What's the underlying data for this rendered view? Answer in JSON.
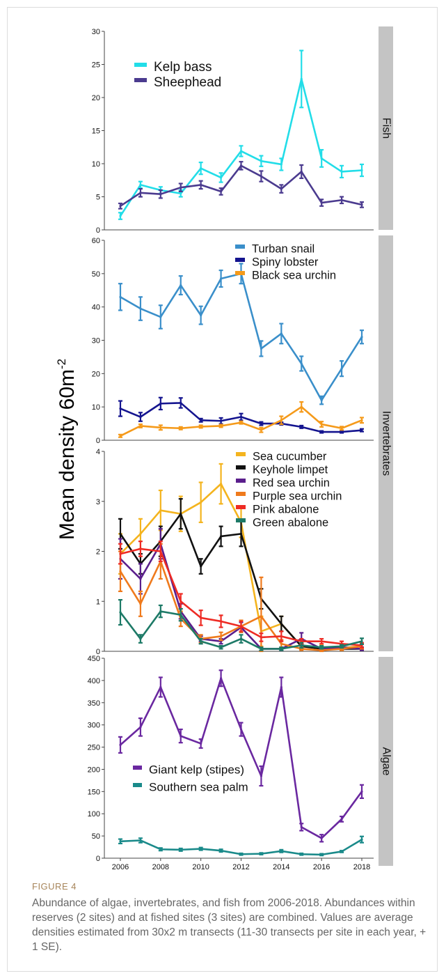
{
  "ylabel": "Mean density 60m",
  "ylabel_sup": "-2",
  "caption": {
    "label": "FIGURE 4",
    "text": "Abundance of algae, invertebrates, and fish from 2006-2018. Abundances within reserves (2 sites) and at fished sites (3 sites) are combined. Values are average densities estimated from 30x2 m transects (11-30 transects per site in each year, + 1 SE)."
  },
  "chart_data": [
    {
      "type": "line",
      "facet": "Fish",
      "x": [
        2006,
        2007,
        2008,
        2009,
        2010,
        2011,
        2012,
        2013,
        2014,
        2015,
        2016,
        2017,
        2018
      ],
      "ylim": [
        0,
        30
      ],
      "yticks": [
        0,
        5,
        10,
        15,
        20,
        25,
        30
      ],
      "legend_position": "top-left",
      "series": [
        {
          "name": "Kelp bass",
          "color": "#22dde8",
          "values": [
            2.1,
            6.8,
            6.0,
            5.5,
            9.3,
            7.9,
            11.9,
            10.4,
            9.9,
            22.8,
            10.8,
            8.8,
            9.0
          ],
          "errors": [
            0.5,
            0.5,
            0.5,
            0.5,
            0.9,
            0.7,
            0.8,
            0.8,
            0.9,
            4.3,
            1.3,
            0.9,
            0.9
          ]
        },
        {
          "name": "Sheephead",
          "color": "#4b3b8f",
          "values": [
            3.6,
            5.6,
            5.4,
            6.4,
            6.8,
            5.8,
            9.7,
            8.1,
            6.2,
            8.8,
            4.1,
            4.5,
            3.8
          ],
          "errors": [
            0.4,
            0.6,
            0.6,
            0.6,
            0.6,
            0.5,
            0.6,
            0.8,
            0.6,
            1.0,
            0.5,
            0.5,
            0.4
          ]
        }
      ]
    },
    {
      "type": "line",
      "facet": "Invertebrates",
      "x": [
        2006,
        2007,
        2008,
        2009,
        2010,
        2011,
        2012,
        2013,
        2014,
        2015,
        2016,
        2017,
        2018
      ],
      "ylim": [
        0,
        60
      ],
      "yticks": [
        0,
        10,
        20,
        30,
        40,
        50,
        60
      ],
      "legend_position": "top-right",
      "series": [
        {
          "name": "Turban snail",
          "color": "#3a8fca",
          "values": [
            43,
            39.5,
            37,
            46.5,
            37.5,
            48.5,
            50,
            27.5,
            32,
            23,
            12,
            21.5,
            31
          ],
          "errors": [
            4,
            3.5,
            3.5,
            2.8,
            2.7,
            2.5,
            3,
            2.3,
            3,
            2.2,
            1.2,
            2.3,
            2
          ]
        },
        {
          "name": "Spiny lobster",
          "color": "#14148f",
          "values": [
            9.5,
            7,
            11,
            11.2,
            6,
            5.8,
            7,
            5,
            5,
            4,
            2.5,
            2.5,
            3
          ],
          "errors": [
            2.3,
            1.3,
            1.8,
            1.5,
            0.5,
            0.9,
            1,
            0.5,
            0.4,
            0.4,
            0.3,
            0.3,
            0.4
          ]
        },
        {
          "name": "Black sea urchin",
          "color": "#f59a1a",
          "values": [
            1.3,
            4.3,
            3.8,
            3.6,
            4.1,
            4.3,
            5.3,
            3.1,
            6,
            10,
            4.8,
            3.6,
            6
          ],
          "errors": [
            0.4,
            0.5,
            0.7,
            0.4,
            0.4,
            0.4,
            0.4,
            0.7,
            1.2,
            1.5,
            0.8,
            0.5,
            0.8
          ]
        }
      ]
    },
    {
      "type": "line",
      "facet": "Invertebrates",
      "x": [
        2006,
        2007,
        2008,
        2009,
        2010,
        2011,
        2012,
        2013,
        2014,
        2015,
        2016,
        2017,
        2018
      ],
      "ylim": [
        0,
        4
      ],
      "yticks": [
        0,
        1,
        2,
        3,
        4
      ],
      "legend_position": "top-right",
      "series": [
        {
          "name": "Sea cucumber",
          "color": "#f4b41e",
          "values": [
            1.95,
            2.35,
            2.82,
            2.75,
            2.98,
            3.35,
            2.58,
            0.4,
            0.55,
            0.1,
            0.07,
            0.07,
            0.1
          ],
          "errors": [
            0.4,
            0.3,
            0.4,
            0.35,
            0.4,
            0.4,
            0.3,
            0.3,
            0.15,
            0.05,
            0.05,
            0.05,
            0.05
          ]
        },
        {
          "name": "Keyhole limpet",
          "color": "#111111",
          "values": [
            2.35,
            1.75,
            2.2,
            2.75,
            1.7,
            2.3,
            2.35,
            1.05,
            0.55,
            0.1,
            0.05,
            0.05,
            0.05
          ],
          "errors": [
            0.3,
            0.2,
            0.3,
            0.3,
            0.15,
            0.2,
            0.25,
            0.2,
            0.15,
            0.05,
            0.03,
            0.03,
            0.03
          ]
        },
        {
          "name": "Red sea urchin",
          "color": "#5a1e8c",
          "values": [
            1.85,
            1.45,
            2.15,
            0.8,
            0.25,
            0.2,
            0.48,
            0.05,
            0.05,
            0.25,
            0.05,
            0.08,
            0.05
          ],
          "errors": [
            0.4,
            0.3,
            0.3,
            0.15,
            0.05,
            0.05,
            0.1,
            0.03,
            0.03,
            0.12,
            0.03,
            0.03,
            0.03
          ]
        },
        {
          "name": "Purple sea urchin",
          "color": "#ef7a1c",
          "values": [
            1.6,
            0.95,
            1.8,
            0.65,
            0.25,
            0.3,
            0.5,
            0.7,
            0.15,
            0.05,
            0.02,
            0.05,
            0.1
          ],
          "errors": [
            0.4,
            0.25,
            0.35,
            0.15,
            0.08,
            0.08,
            0.12,
            0.78,
            0.08,
            0.03,
            0.02,
            0.03,
            0.05
          ]
        },
        {
          "name": "Pink abalone",
          "color": "#ee2b24",
          "values": [
            1.95,
            2.05,
            2.0,
            1.0,
            0.67,
            0.6,
            0.5,
            0.28,
            0.3,
            0.2,
            0.2,
            0.15,
            0.12
          ],
          "errors": [
            0.2,
            0.15,
            0.2,
            0.15,
            0.15,
            0.12,
            0.1,
            0.08,
            0.1,
            0.05,
            0.05,
            0.05,
            0.05
          ]
        },
        {
          "name": "Green abalone",
          "color": "#1d7a67",
          "values": [
            0.78,
            0.25,
            0.8,
            0.73,
            0.2,
            0.08,
            0.25,
            0.05,
            0.05,
            0.12,
            0.08,
            0.1,
            0.2
          ],
          "errors": [
            0.25,
            0.08,
            0.12,
            0.12,
            0.05,
            0.03,
            0.08,
            0.03,
            0.03,
            0.05,
            0.03,
            0.03,
            0.06
          ]
        }
      ]
    },
    {
      "type": "line",
      "facet": "Algae",
      "x": [
        2006,
        2007,
        2008,
        2009,
        2010,
        2011,
        2012,
        2013,
        2014,
        2015,
        2016,
        2017,
        2018
      ],
      "ylim": [
        0,
        450
      ],
      "yticks": [
        0,
        50,
        100,
        150,
        200,
        250,
        300,
        350,
        400,
        450
      ],
      "xticks": [
        "2006",
        "2008",
        "2010",
        "2012",
        "2014",
        "2016",
        "2018"
      ],
      "legend_position": "bottom-left",
      "series": [
        {
          "name": "Giant kelp (stipes)",
          "color": "#6a28a0",
          "values": [
            255,
            295,
            385,
            275,
            258,
            405,
            290,
            185,
            385,
            70,
            45,
            88,
            150
          ],
          "errors": [
            18,
            20,
            22,
            15,
            10,
            18,
            15,
            22,
            22,
            8,
            8,
            6,
            15
          ]
        },
        {
          "name": "Southern sea palm",
          "color": "#1a8a8a",
          "values": [
            38,
            40,
            20,
            19,
            21,
            17,
            9,
            10,
            16,
            9,
            8,
            15,
            42
          ],
          "errors": [
            5,
            5,
            3,
            3,
            3,
            3,
            2,
            2,
            3,
            2,
            2,
            2,
            7
          ]
        }
      ]
    }
  ]
}
